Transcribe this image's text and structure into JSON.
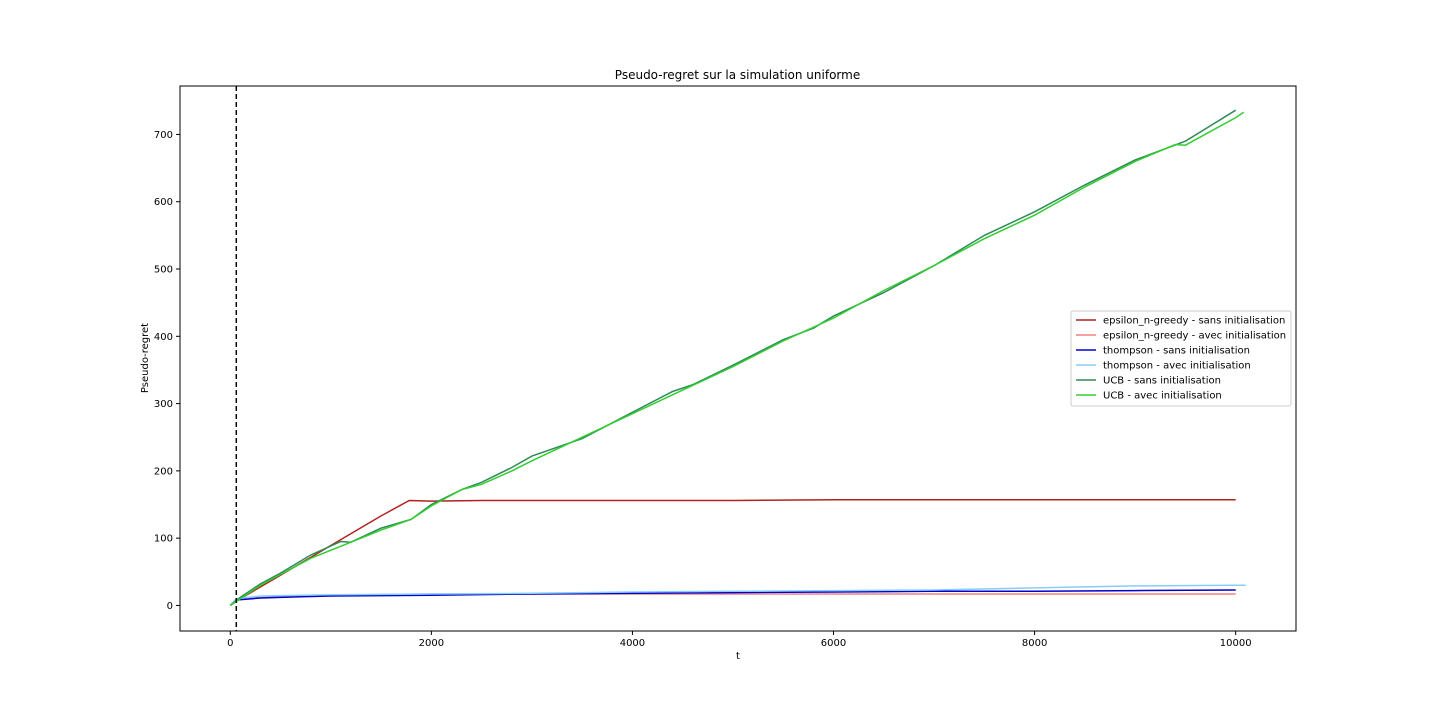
{
  "chart_data": {
    "type": "line",
    "title": "Pseudo-regret sur la simulation uniforme",
    "xlabel": "t",
    "ylabel": "Pseudo-regret",
    "xlim": [
      -500,
      10600
    ],
    "ylim": [
      -38,
      772
    ],
    "xticks": [
      0,
      2000,
      4000,
      6000,
      8000,
      10000
    ],
    "yticks": [
      0,
      100,
      200,
      300,
      400,
      500,
      600,
      700
    ],
    "grid": false,
    "legend_position": "center-right",
    "vline": {
      "x": 60,
      "style": "dashed",
      "color": "#000000"
    },
    "series": [
      {
        "name": "epsilon_n-greedy - sans initialisation",
        "color": "#b22222",
        "x": [
          0,
          100,
          500,
          1000,
          1500,
          1780,
          2000,
          2500,
          3000,
          4000,
          5000,
          6000,
          7000,
          8000,
          9000,
          10000
        ],
        "y": [
          0,
          10,
          45,
          89,
          133,
          156,
          155,
          156,
          156,
          156,
          156,
          157,
          157,
          157,
          157,
          157
        ]
      },
      {
        "name": "epsilon_n-greedy - avec initialisation",
        "color": "#f08080",
        "x": [
          0,
          60,
          500,
          1000,
          2000,
          3000,
          4000,
          5000,
          6000,
          7000,
          8000,
          9000,
          10000
        ],
        "y": [
          0,
          10,
          13,
          15,
          17,
          17,
          17,
          17,
          17,
          17,
          17,
          17,
          17
        ]
      },
      {
        "name": "thompson - sans initialisation",
        "color": "#0000cd",
        "x": [
          0,
          60,
          300,
          700,
          1000,
          2000,
          3000,
          4000,
          5000,
          6000,
          7000,
          8000,
          9000,
          10000
        ],
        "y": [
          0,
          8,
          11,
          13,
          14,
          15,
          17,
          18,
          19,
          20,
          21,
          21,
          22,
          23
        ]
      },
      {
        "name": "thompson - avec initialisation",
        "color": "#87cefa",
        "x": [
          0,
          60,
          300,
          700,
          1000,
          2000,
          3000,
          4000,
          5000,
          6000,
          7000,
          8000,
          9000,
          10000,
          10100
        ],
        "y": [
          0,
          10,
          14,
          15,
          16,
          17,
          18,
          20,
          21,
          22,
          23,
          26,
          29,
          30,
          30
        ]
      },
      {
        "name": "UCB - sans initialisation",
        "color": "#2e8b57",
        "x": [
          0,
          100,
          300,
          500,
          800,
          1100,
          1200,
          1500,
          1800,
          2000,
          2300,
          2500,
          2800,
          3000,
          3500,
          4000,
          4400,
          4600,
          5000,
          5500,
          5800,
          6000,
          6500,
          7000,
          7500,
          8000,
          8500,
          9000,
          9500,
          10000
        ],
        "y": [
          0,
          12,
          32,
          48,
          75,
          95,
          94,
          115,
          128,
          150,
          172,
          183,
          205,
          222,
          248,
          287,
          318,
          328,
          357,
          395,
          412,
          430,
          465,
          505,
          550,
          585,
          625,
          662,
          690,
          736
        ]
      },
      {
        "name": "UCB - avec initialisation",
        "color": "#32cd32",
        "x": [
          0,
          100,
          300,
          500,
          800,
          1100,
          1500,
          1800,
          2000,
          2300,
          2500,
          2800,
          3000,
          3500,
          4000,
          4500,
          5000,
          5500,
          6000,
          6500,
          7000,
          7500,
          8000,
          8500,
          9000,
          9400,
          9500,
          10000,
          10080
        ],
        "y": [
          0,
          10,
          30,
          46,
          70,
          88,
          112,
          128,
          148,
          172,
          180,
          200,
          215,
          250,
          285,
          320,
          355,
          393,
          427,
          468,
          505,
          545,
          580,
          622,
          660,
          685,
          684,
          725,
          733
        ]
      }
    ]
  }
}
